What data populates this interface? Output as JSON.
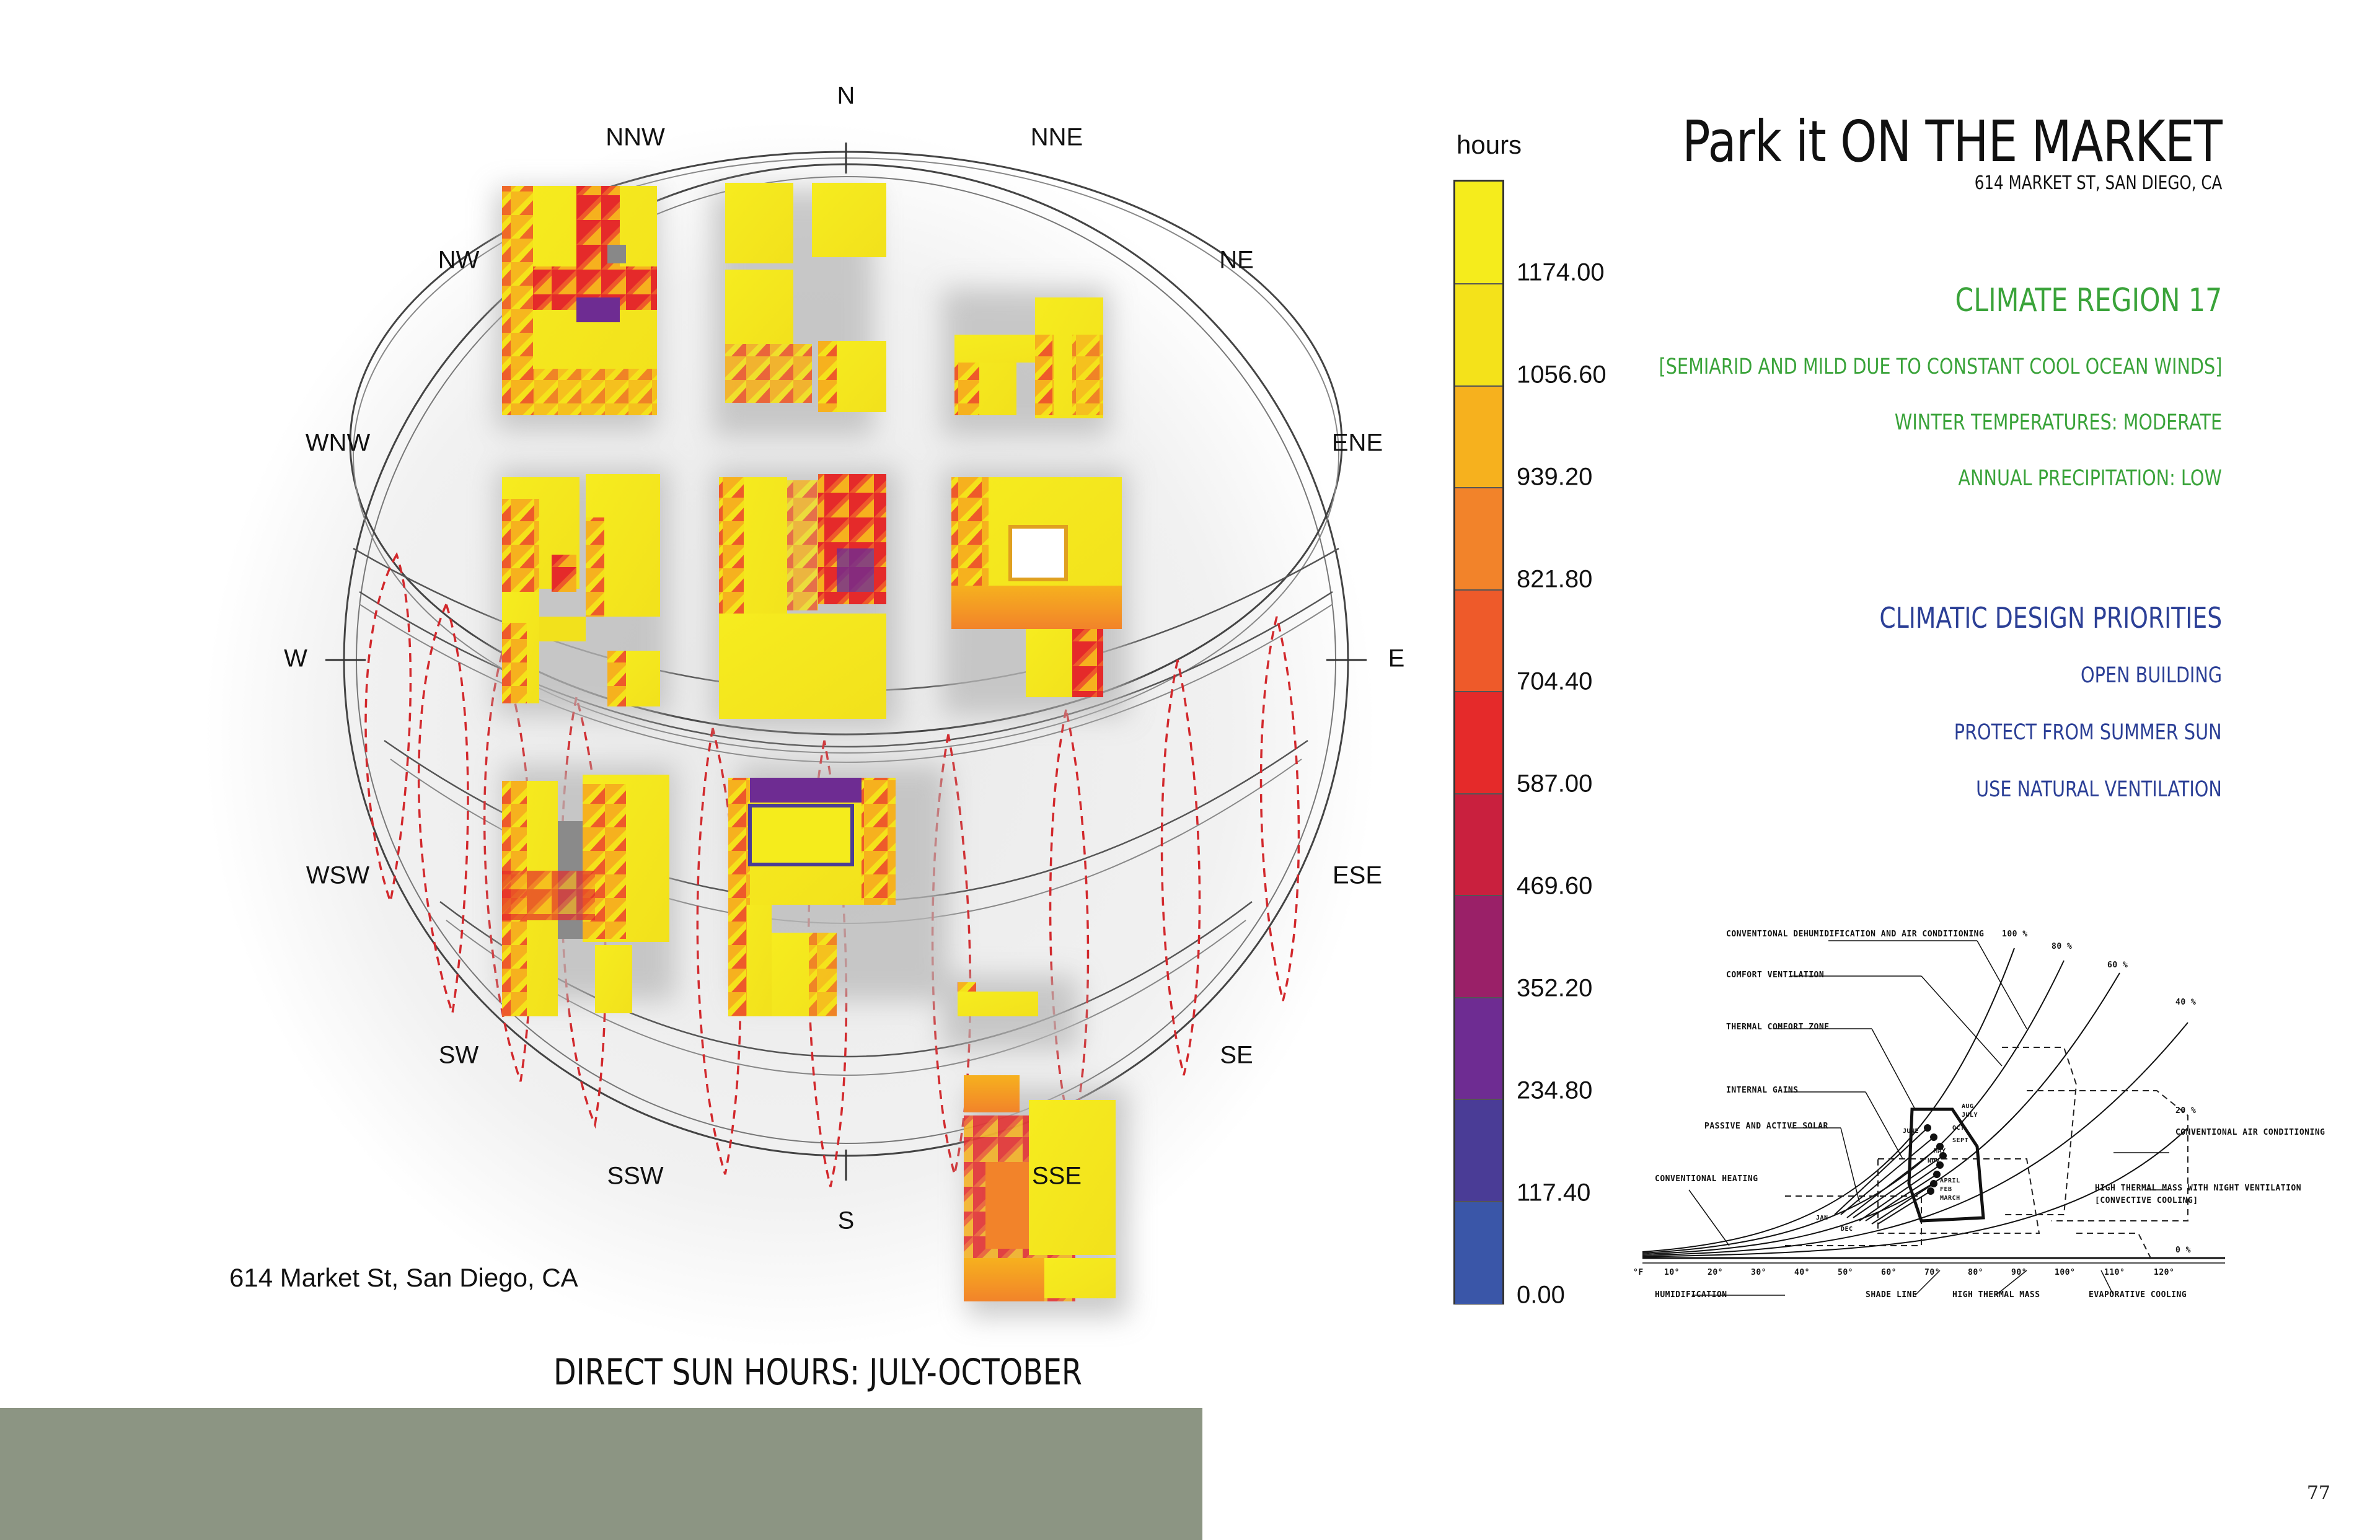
{
  "header": {
    "title": "Park it ON THE MARKET",
    "address": "614 MARKET ST, SAN DIEGO, CA"
  },
  "climate": {
    "region": "CLIMATE REGION 17",
    "notes": [
      "[SEMIARID AND MILD DUE TO CONSTANT COOL OCEAN WINDS]",
      "WINTER TEMPERATURES: MODERATE",
      "ANNUAL PRECIPITATION:  LOW"
    ],
    "accent_color": "#3aa33a"
  },
  "priorities": {
    "heading": "CLIMATIC DESIGN PRIORITIES",
    "items": [
      "OPEN BUILDING",
      "PROTECT FROM SUMMER SUN",
      "USE NATURAL VENTILATION"
    ],
    "accent_color": "#2b3f96"
  },
  "sunpath": {
    "directions": [
      "N",
      "NNE",
      "NE",
      "ENE",
      "E",
      "ESE",
      "SE",
      "SSE",
      "S",
      "SSW",
      "SW",
      "WSW",
      "W",
      "WNW",
      "NW",
      "NNW"
    ],
    "address_label": "614 Market St, San Diego, CA",
    "caption": "DIRECT SUN HOURS: JULY-OCTOBER"
  },
  "legend": {
    "title": "hours",
    "values": [
      "1174.00",
      "1056.60",
      "939.20",
      "821.80",
      "704.40",
      "587.00",
      "469.60",
      "352.20",
      "234.80",
      "117.40",
      "0.00"
    ],
    "colors": [
      "#f5ec1c",
      "#f4e21a",
      "#f6b11e",
      "#f2832a",
      "#ee5a2a",
      "#e52a2a",
      "#c9203e",
      "#9a2068",
      "#6e2c92",
      "#4a3c96",
      "#3a56a8"
    ]
  },
  "psychro": {
    "labels": {
      "dehum": "CONVENTIONAL DEHUMIDIFICATION AND AIR CONDITIONING",
      "comfort_vent": "COMFORT VENTILATION",
      "thermal_zone": "THERMAL COMFORT ZONE",
      "internal": "INTERNAL GAINS",
      "passive": "PASSIVE AND ACTIVE SOLAR",
      "conv_heat": "CONVENTIONAL HEATING",
      "conv_ac": "CONVENTIONAL AIR CONDITIONING",
      "high_mass": "HIGH THERMAL MASS WITH NIGHT VENTILATION",
      "convective": "[CONVECTIVE COOLING]",
      "humidification": "HUMIDIFICATION",
      "shade": "SHADE LINE",
      "high_thermal": "HIGH THERMAL MASS",
      "evap": "EVAPORATIVE COOLING"
    },
    "rh_labels": [
      "100 %",
      "80 %",
      "60 %",
      "40 %",
      "20 %",
      "0 %"
    ],
    "temp_axis": [
      "°F",
      "10°",
      "20°",
      "30°",
      "40°",
      "50°",
      "60°",
      "70°",
      "80°",
      "90°",
      "100°",
      "110°",
      "120°"
    ],
    "months": [
      "AUG",
      "JULY",
      "OCT",
      "JUNE",
      "SEPT",
      "MAY",
      "NOV",
      "APRIL",
      "FEB",
      "MARCH",
      "DEC",
      "JAN"
    ]
  },
  "page": {
    "number": "77",
    "footer_color": "#8c9583"
  }
}
